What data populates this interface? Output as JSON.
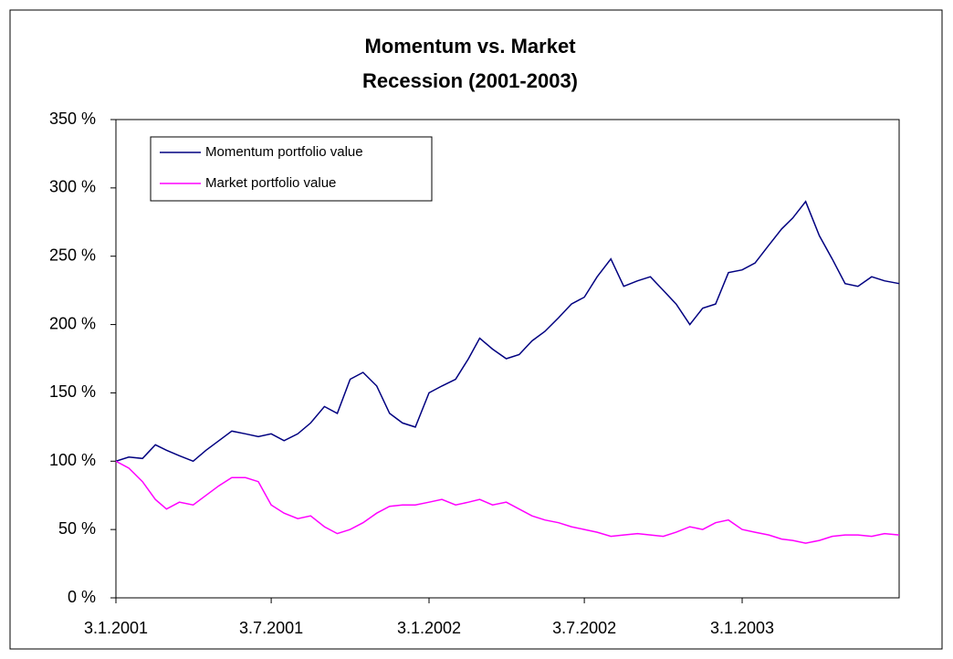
{
  "chart_data": {
    "type": "line",
    "title": "Momentum vs. Market",
    "subtitle": "Recession (2001-2003)",
    "x": [
      "3.1.2001",
      "18.1.2001",
      "3.2.2001",
      "18.2.2001",
      "3.3.2001",
      "18.3.2001",
      "3.4.2001",
      "18.4.2001",
      "3.5.2001",
      "18.5.2001",
      "3.6.2001",
      "18.6.2001",
      "3.7.2001",
      "18.7.2001",
      "3.8.2001",
      "18.8.2001",
      "3.9.2001",
      "18.9.2001",
      "3.10.2001",
      "18.10.2001",
      "3.11.2001",
      "18.11.2001",
      "3.12.2001",
      "18.12.2001",
      "3.1.2002",
      "18.1.2002",
      "3.2.2002",
      "18.2.2002",
      "3.3.2002",
      "18.3.2002",
      "3.4.2002",
      "18.4.2002",
      "3.5.2002",
      "18.5.2002",
      "3.6.2002",
      "18.6.2002",
      "3.7.2002",
      "18.7.2002",
      "3.8.2002",
      "18.8.2002",
      "3.9.2002",
      "18.9.2002",
      "3.10.2002",
      "18.10.2002",
      "3.11.2002",
      "18.11.2002",
      "3.12.2002",
      "18.12.2002",
      "3.1.2003",
      "18.1.2003",
      "3.2.2003",
      "18.2.2003",
      "3.3.2003",
      "18.3.2003",
      "3.4.2003",
      "18.4.2003",
      "3.5.2003",
      "18.5.2003",
      "3.6.2003",
      "18.6.2003",
      "5.7.2003"
    ],
    "series": [
      {
        "name": "Momentum portfolio value",
        "color": "#000080",
        "values": [
          100,
          103,
          102,
          112,
          108,
          104,
          100,
          108,
          115,
          122,
          120,
          118,
          120,
          115,
          120,
          128,
          140,
          135,
          160,
          165,
          155,
          135,
          128,
          125,
          150,
          155,
          160,
          175,
          190,
          182,
          175,
          178,
          188,
          195,
          205,
          215,
          220,
          235,
          248,
          228,
          232,
          235,
          225,
          215,
          200,
          212,
          215,
          238,
          240,
          245,
          258,
          270,
          278,
          290,
          265,
          248,
          230,
          228,
          235,
          232,
          230
        ]
      },
      {
        "name": "Market portfolio value",
        "color": "#ff00ff",
        "values": [
          100,
          95,
          85,
          72,
          65,
          70,
          68,
          75,
          82,
          88,
          88,
          85,
          68,
          62,
          58,
          60,
          52,
          47,
          50,
          55,
          62,
          67,
          68,
          68,
          70,
          72,
          68,
          70,
          72,
          68,
          70,
          65,
          60,
          57,
          55,
          52,
          50,
          48,
          45,
          46,
          47,
          46,
          45,
          48,
          52,
          50,
          55,
          57,
          50,
          48,
          46,
          43,
          42,
          40,
          42,
          45,
          46,
          46,
          45,
          47,
          46
        ]
      }
    ],
    "xlim": [
      "3.1.2001",
      "5.7.2003"
    ],
    "xticks": [
      "3.1.2001",
      "3.7.2001",
      "3.1.2002",
      "3.7.2002",
      "3.1.2003"
    ],
    "ylim": [
      0,
      350
    ],
    "yticks": [
      {
        "value": 0,
        "label": "0 %"
      },
      {
        "value": 50,
        "label": "50 %"
      },
      {
        "value": 100,
        "label": "100 %"
      },
      {
        "value": 150,
        "label": "150 %"
      },
      {
        "value": 200,
        "label": "200 %"
      },
      {
        "value": 250,
        "label": "250 %"
      },
      {
        "value": 300,
        "label": "300 %"
      },
      {
        "value": 350,
        "label": "350 %"
      }
    ],
    "legend": "upper-left"
  }
}
